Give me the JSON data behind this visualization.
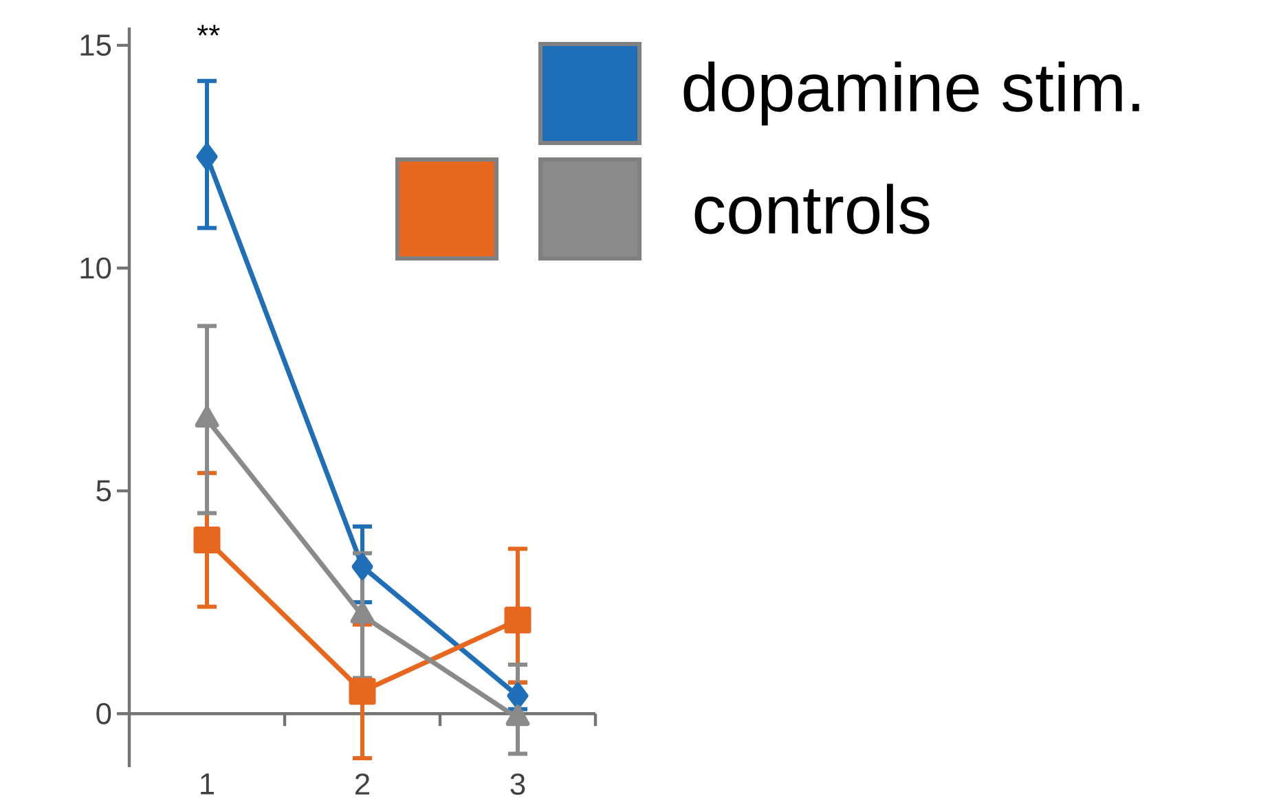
{
  "chart_data": {
    "type": "line",
    "xlim": [
      0.5,
      3.5
    ],
    "xticks": [
      {
        "value": 0.5,
        "label": null
      },
      {
        "value": 1,
        "label": "1"
      },
      {
        "value": 1.5,
        "label": null
      },
      {
        "value": 2,
        "label": "2"
      },
      {
        "value": 2.5,
        "label": null
      },
      {
        "value": 3,
        "label": "3"
      },
      {
        "value": 3.5,
        "label": null
      }
    ],
    "ylim": [
      -1.2,
      15.4
    ],
    "yticks": [
      0,
      5,
      10,
      15
    ],
    "x": [
      1,
      2,
      3
    ],
    "series": [
      {
        "name": "dopamine stim.",
        "color": "#1f6fb8",
        "marker": "diamond",
        "values": [
          12.5,
          3.3,
          0.4
        ],
        "errors": [
          [
            10.9,
            14.2
          ],
          [
            2.5,
            4.2
          ],
          [
            0.1,
            0.7
          ]
        ]
      },
      {
        "color": "#e8671e",
        "marker": "square",
        "values": [
          3.9,
          0.5,
          2.1
        ],
        "errors": [
          [
            2.4,
            5.4
          ],
          [
            -1.0,
            2.0
          ],
          [
            0.7,
            3.7
          ]
        ]
      },
      {
        "name": "controls",
        "color": "#8a8a8a",
        "marker": "triangle",
        "values": [
          6.6,
          2.2,
          -0.1
        ],
        "errors": [
          [
            4.5,
            8.7
          ],
          [
            0.8,
            3.6
          ],
          [
            -0.9,
            1.1
          ]
        ]
      }
    ],
    "annotations": [
      "**"
    ],
    "legend": "top right",
    "grid": false
  }
}
